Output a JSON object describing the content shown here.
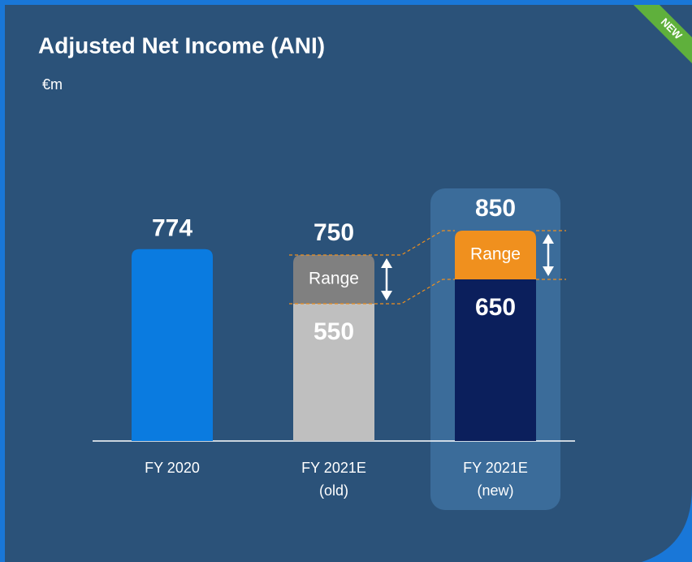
{
  "chart_data": {
    "type": "range-bar",
    "title": "Adjusted Net Income (ANI)",
    "unit": "€m",
    "badge": "NEW",
    "categories": [
      [
        "FY 2020"
      ],
      [
        "FY 2021E",
        "(old)"
      ],
      [
        "FY 2021E",
        "(new)"
      ]
    ],
    "bars": [
      {
        "value": 774,
        "color": "#0a7be0"
      },
      {
        "value": 550,
        "range_high": 750,
        "range_label": "Range",
        "color": "#bfbfbf",
        "range_color": "#808080"
      },
      {
        "value": 650,
        "range_high": 850,
        "range_label": "Range",
        "color": "#0b1f5c",
        "range_color": "#f0901e",
        "highlight": true
      }
    ]
  }
}
